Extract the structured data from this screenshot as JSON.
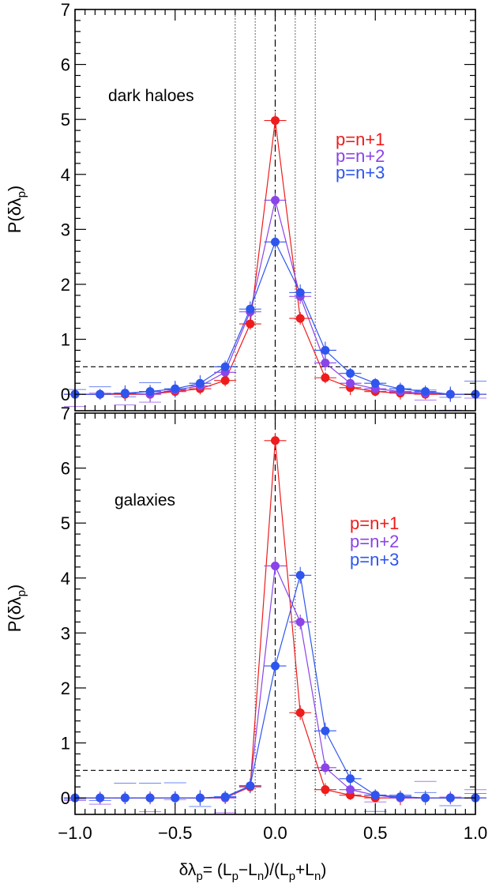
{
  "chart_data": [
    {
      "type": "line",
      "panel": "top",
      "annotation": "dark haloes",
      "ylabel": "P(δλ",
      "ylabel_sub": "p",
      "ylabel_close": ")",
      "xlim": [
        -1.0,
        1.0
      ],
      "ylim": [
        -0.3,
        7.0
      ],
      "yticks": [
        "0",
        "1",
        "2",
        "3",
        "4",
        "5",
        "6",
        "7"
      ],
      "reference_hline": 0.5,
      "dashdot_vline": 0.0,
      "dotted_vlines": [
        -0.2,
        -0.1,
        0.1,
        0.2
      ],
      "legend": [
        {
          "label": "p=n+1",
          "color": "#ee1c1c"
        },
        {
          "label": "p=n+2",
          "color": "#8a44e8"
        },
        {
          "label": "p=n+3",
          "color": "#2e55ee"
        }
      ],
      "series": [
        {
          "name": "p=n+1",
          "color": "#ee1c1c",
          "x": [
            -1.0,
            -0.875,
            -0.75,
            -0.625,
            -0.5,
            -0.375,
            -0.25,
            -0.125,
            0.0,
            0.125,
            0.25,
            0.375,
            0.5,
            0.625,
            0.75,
            0.875,
            1.0
          ],
          "y": [
            0.0,
            0.0,
            0.0,
            0.0,
            0.05,
            0.1,
            0.25,
            1.28,
            4.98,
            1.38,
            0.3,
            0.12,
            0.05,
            0.02,
            0.0,
            0.0,
            0.0
          ]
        },
        {
          "name": "p=n+2",
          "color": "#8a44e8",
          "x": [
            -1.0,
            -0.875,
            -0.75,
            -0.625,
            -0.5,
            -0.375,
            -0.25,
            -0.125,
            0.0,
            0.125,
            0.25,
            0.375,
            0.5,
            0.625,
            0.75,
            0.875,
            1.0
          ],
          "y": [
            0.0,
            0.0,
            0.02,
            0.0,
            0.08,
            0.15,
            0.4,
            1.5,
            3.53,
            1.78,
            0.57,
            0.2,
            0.1,
            0.05,
            0.02,
            0.0,
            0.0
          ]
        },
        {
          "name": "p=n+3",
          "color": "#2e55ee",
          "x": [
            -1.0,
            -0.875,
            -0.75,
            -0.625,
            -0.5,
            -0.375,
            -0.25,
            -0.125,
            0.0,
            0.125,
            0.25,
            0.375,
            0.5,
            0.625,
            0.75,
            0.875,
            1.0
          ],
          "y": [
            0.0,
            0.0,
            0.02,
            0.05,
            0.1,
            0.2,
            0.5,
            1.55,
            2.77,
            1.85,
            0.8,
            0.38,
            0.2,
            0.1,
            0.05,
            0.0,
            0.0
          ]
        }
      ]
    },
    {
      "type": "line",
      "panel": "bottom",
      "annotation": "galaxies",
      "ylabel": "P(δλ",
      "ylabel_sub": "p",
      "ylabel_close": ")",
      "xlabel": "δλ",
      "xlabel_sub": "p",
      "xlabel_rest": "= (L",
      "xlabel_parts": [
        "p",
        "−L",
        "n",
        ")/(L",
        "p",
        "+L",
        "n",
        ")"
      ],
      "xlim": [
        -1.0,
        1.0
      ],
      "ylim": [
        -0.3,
        7.0
      ],
      "xticks": [
        "−1.0",
        "−0.5",
        "0.0",
        "0.5",
        "1.0"
      ],
      "yticks": [
        "0",
        "1",
        "2",
        "3",
        "4",
        "5",
        "6",
        "7"
      ],
      "reference_hline": 0.5,
      "dashed_vline": 0.0,
      "dotted_vlines": [
        -0.2,
        -0.1,
        0.1,
        0.2
      ],
      "legend": [
        {
          "label": "p=n+1",
          "color": "#ee1c1c"
        },
        {
          "label": "p=n+2",
          "color": "#8a44e8"
        },
        {
          "label": "p=n+3",
          "color": "#2e55ee"
        }
      ],
      "series": [
        {
          "name": "p=n+1",
          "color": "#ee1c1c",
          "x": [
            -1.0,
            -0.875,
            -0.75,
            -0.625,
            -0.5,
            -0.375,
            -0.25,
            -0.125,
            0.0,
            0.125,
            0.25,
            0.375,
            0.5,
            0.625,
            0.75,
            0.875,
            1.0
          ],
          "y": [
            0.0,
            0.0,
            0.0,
            0.0,
            0.0,
            0.0,
            0.0,
            0.2,
            6.5,
            1.55,
            0.15,
            0.05,
            0.0,
            0.0,
            0.0,
            0.0,
            0.0
          ]
        },
        {
          "name": "p=n+2",
          "color": "#8a44e8",
          "x": [
            -1.0,
            -0.875,
            -0.75,
            -0.625,
            -0.5,
            -0.375,
            -0.25,
            -0.125,
            0.0,
            0.125,
            0.25,
            0.375,
            0.5,
            0.625,
            0.75,
            0.875,
            1.0
          ],
          "y": [
            0.0,
            0.0,
            0.0,
            0.0,
            0.0,
            0.0,
            0.0,
            0.22,
            4.22,
            3.2,
            0.55,
            0.15,
            0.05,
            0.0,
            0.0,
            0.0,
            0.0
          ]
        },
        {
          "name": "p=n+3",
          "color": "#2e55ee",
          "x": [
            -1.0,
            -0.875,
            -0.75,
            -0.625,
            -0.5,
            -0.375,
            -0.25,
            -0.125,
            0.0,
            0.125,
            0.25,
            0.375,
            0.5,
            0.625,
            0.75,
            0.875,
            1.0
          ],
          "y": [
            0.0,
            0.0,
            0.0,
            0.0,
            0.0,
            0.0,
            0.02,
            0.22,
            2.4,
            4.05,
            1.22,
            0.35,
            0.05,
            0.02,
            0.0,
            0.0,
            0.0
          ]
        }
      ]
    }
  ]
}
